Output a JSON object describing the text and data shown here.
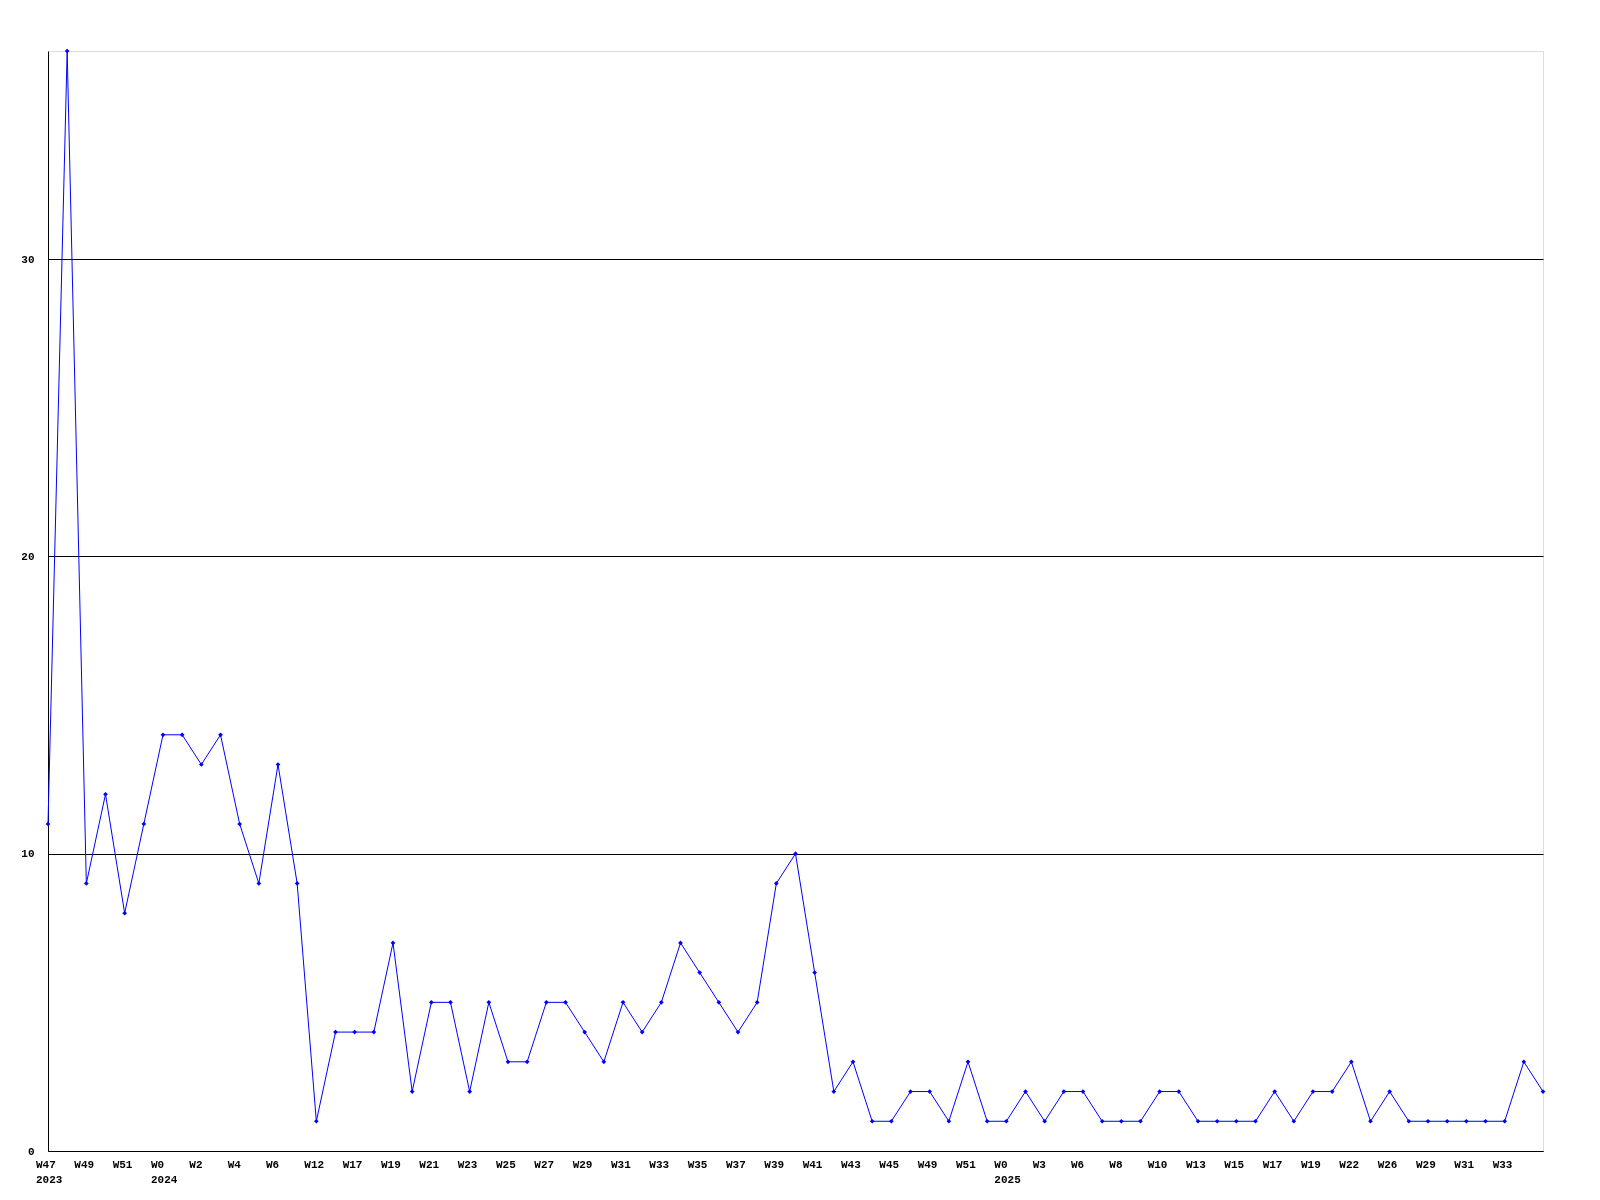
{
  "chart_data": {
    "type": "line",
    "categories": [
      "W47\n2023",
      null,
      "W49",
      null,
      "W51",
      null,
      "W0\n2024",
      null,
      "W2",
      null,
      "W4",
      null,
      "W6",
      null,
      "W12",
      null,
      "W17",
      null,
      "W19",
      null,
      "W21",
      null,
      "W23",
      null,
      "W25",
      null,
      "W27",
      null,
      "W29",
      null,
      "W31",
      null,
      "W33",
      null,
      "W35",
      null,
      "W37",
      null,
      "W39",
      null,
      "W41",
      null,
      "W43",
      null,
      "W45",
      null,
      "W49",
      null,
      "W51",
      null,
      "W0\n2025",
      null,
      "W3",
      null,
      "W6",
      null,
      "W8",
      null,
      "W10",
      null,
      "W13",
      null,
      "W15",
      null,
      "W17",
      null,
      "W19",
      null,
      "W22",
      null,
      "W26",
      null,
      "W29",
      null,
      "W31",
      null,
      "W33",
      null,
      null
    ],
    "series": [
      {
        "color": "#0000ff",
        "values": [
          11,
          37,
          9,
          12,
          8,
          11,
          14,
          14,
          13,
          14,
          11,
          9,
          13,
          9,
          1,
          4,
          4,
          4,
          7,
          2,
          5,
          5,
          2,
          5,
          3,
          3,
          5,
          5,
          4,
          3,
          5,
          4,
          5,
          7,
          6,
          5,
          4,
          5,
          9,
          10,
          6,
          2,
          3,
          1,
          1,
          2,
          2,
          1,
          3,
          1,
          1,
          2,
          1,
          2,
          2,
          1,
          1,
          1,
          2,
          2,
          1,
          1,
          1,
          1,
          2,
          1,
          2,
          2,
          3,
          1,
          2,
          1,
          1,
          1,
          1,
          1,
          1,
          3,
          2
        ]
      }
    ],
    "ylim": [
      0,
      37
    ],
    "yticks": [
      0,
      10,
      20,
      30
    ],
    "grid": "y",
    "marker": "diamond",
    "line_style": "solid"
  }
}
